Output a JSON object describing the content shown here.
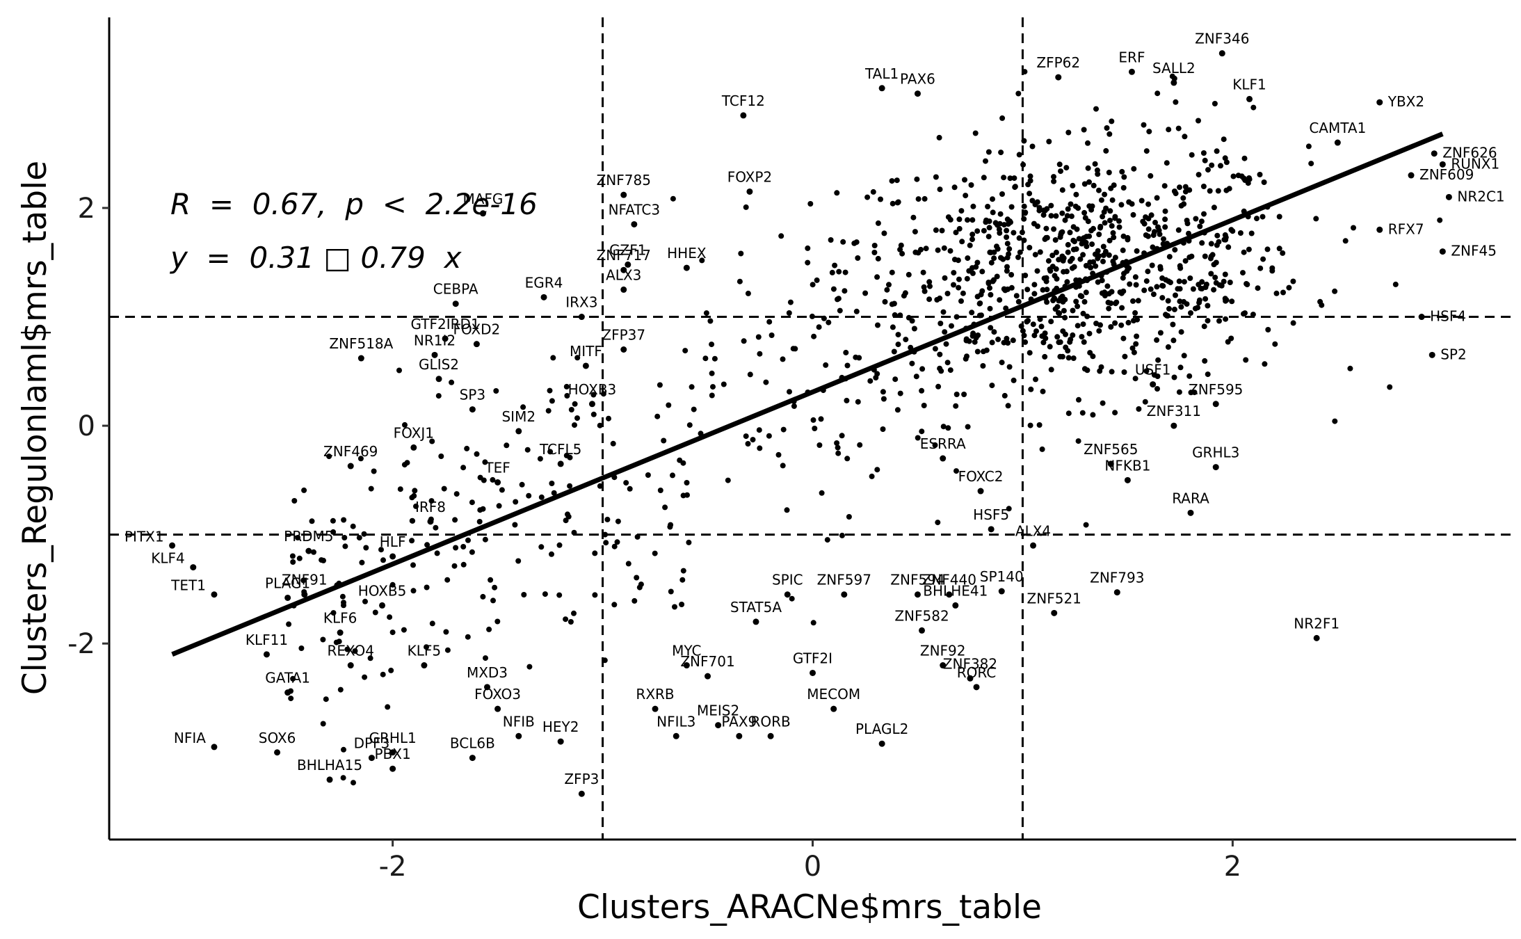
{
  "chart_data": {
    "type": "scatter",
    "xlabel": "Clusters_ARACNe$mrs_table",
    "ylabel": "Clusters_Regulonlaml$mrs_table",
    "xlim": [
      -3.35,
      3.35
    ],
    "ylim": [
      -3.8,
      3.75
    ],
    "x_ticks": [
      -2,
      0,
      2
    ],
    "y_ticks": [
      -2,
      0,
      2
    ],
    "x_tick_labels": [
      "-2",
      "0",
      "2"
    ],
    "y_tick_labels": [
      "-2",
      "0",
      "2"
    ],
    "grid": false,
    "reference_lines": {
      "vertical": [
        -1,
        1
      ],
      "horizontal": [
        -1,
        1
      ],
      "style": "dashed"
    },
    "regression_line": {
      "intercept": 0.31,
      "slope": 0.79,
      "x_range": [
        -3.05,
        3.0
      ]
    },
    "annotation": {
      "r_line": "R  =  0.67,  p  <  2.2e-16",
      "eq_line": "y  =  0.31 □ 0.79  x"
    },
    "labeled_points": [
      {
        "label": "ZNF346",
        "x": 1.95,
        "y": 3.42
      },
      {
        "label": "ERF",
        "x": 1.52,
        "y": 3.25
      },
      {
        "label": "ZFP62",
        "x": 1.17,
        "y": 3.2
      },
      {
        "label": "SALL2",
        "x": 1.72,
        "y": 3.15
      },
      {
        "label": "TAL1",
        "x": 0.33,
        "y": 3.1
      },
      {
        "label": "PAX6",
        "x": 0.5,
        "y": 3.05
      },
      {
        "label": "KLF1",
        "x": 2.08,
        "y": 3.0
      },
      {
        "label": "YBX2",
        "x": 2.7,
        "y": 2.97
      },
      {
        "label": "TCF12",
        "x": -0.33,
        "y": 2.85
      },
      {
        "label": "CAMTA1",
        "x": 2.5,
        "y": 2.6
      },
      {
        "label": "ZNF626",
        "x": 2.96,
        "y": 2.5
      },
      {
        "label": "RUNX1",
        "x": 3.0,
        "y": 2.4
      },
      {
        "label": "ZNF609",
        "x": 2.85,
        "y": 2.3
      },
      {
        "label": "NR2C1",
        "x": 3.03,
        "y": 2.1
      },
      {
        "label": "ZNF785",
        "x": -0.9,
        "y": 2.12
      },
      {
        "label": "FOXP2",
        "x": -0.3,
        "y": 2.15
      },
      {
        "label": "NFATC3",
        "x": -0.85,
        "y": 1.85
      },
      {
        "label": "MAFG",
        "x": -1.57,
        "y": 1.95
      },
      {
        "label": "RFX7",
        "x": 2.7,
        "y": 1.8
      },
      {
        "label": "ZNF45",
        "x": 3.0,
        "y": 1.6
      },
      {
        "label": "GZF1",
        "x": -0.88,
        "y": 1.48
      },
      {
        "label": "ZNF717",
        "x": -0.9,
        "y": 1.43
      },
      {
        "label": "HHEX",
        "x": -0.6,
        "y": 1.45
      },
      {
        "label": "CEBPA",
        "x": -1.7,
        "y": 1.12
      },
      {
        "label": "EGR4",
        "x": -1.28,
        "y": 1.18
      },
      {
        "label": "ALX3",
        "x": -0.9,
        "y": 1.25
      },
      {
        "label": "IRX3",
        "x": -1.1,
        "y": 1.0
      },
      {
        "label": "HSF4",
        "x": 2.9,
        "y": 1.0
      },
      {
        "label": "GTF2IRD1",
        "x": -1.75,
        "y": 0.8
      },
      {
        "label": "NR1I2",
        "x": -1.8,
        "y": 0.65
      },
      {
        "label": "ZFP37",
        "x": -0.9,
        "y": 0.7
      },
      {
        "label": "ZNF518A",
        "x": -2.15,
        "y": 0.62
      },
      {
        "label": "FOXD2",
        "x": -1.6,
        "y": 0.75
      },
      {
        "label": "GLIS2",
        "x": -1.78,
        "y": 0.43
      },
      {
        "label": "MITF",
        "x": -1.08,
        "y": 0.55
      },
      {
        "label": "SP2",
        "x": 2.95,
        "y": 0.65
      },
      {
        "label": "USF1",
        "x": 1.62,
        "y": 0.38
      },
      {
        "label": "SP3",
        "x": -1.62,
        "y": 0.15
      },
      {
        "label": "HOXB3",
        "x": -1.05,
        "y": 0.2
      },
      {
        "label": "ZNF595",
        "x": 1.92,
        "y": 0.2
      },
      {
        "label": "FOXJ1",
        "x": -1.9,
        "y": -0.2
      },
      {
        "label": "SIM2",
        "x": -1.4,
        "y": -0.05
      },
      {
        "label": "ZNF311",
        "x": 1.72,
        "y": 0.0
      },
      {
        "label": "ZNF565",
        "x": 1.42,
        "y": -0.35
      },
      {
        "label": "ESRRA",
        "x": 0.62,
        "y": -0.3
      },
      {
        "label": "TCFL5",
        "x": -1.2,
        "y": -0.35
      },
      {
        "label": "ZNF469",
        "x": -2.2,
        "y": -0.37
      },
      {
        "label": "GRHL3",
        "x": 1.92,
        "y": -0.38
      },
      {
        "label": "TEF",
        "x": -1.5,
        "y": -0.52
      },
      {
        "label": "FOXC2",
        "x": 0.8,
        "y": -0.6
      },
      {
        "label": "NFKB1",
        "x": 1.5,
        "y": -0.5
      },
      {
        "label": "IRF8",
        "x": -1.82,
        "y": -0.88
      },
      {
        "label": "HSF5",
        "x": 0.85,
        "y": -0.95
      },
      {
        "label": "RARA",
        "x": 1.8,
        "y": -0.8
      },
      {
        "label": "PITX1",
        "x": -3.05,
        "y": -1.1
      },
      {
        "label": "PRDM5",
        "x": -2.4,
        "y": -1.15
      },
      {
        "label": "HLF",
        "x": -2.0,
        "y": -1.2
      },
      {
        "label": "ALX4",
        "x": 1.05,
        "y": -1.1
      },
      {
        "label": "KLF4",
        "x": -2.95,
        "y": -1.3
      },
      {
        "label": "ZNF594",
        "x": 0.5,
        "y": -1.55
      },
      {
        "label": "ZNF440",
        "x": 0.65,
        "y": -1.55
      },
      {
        "label": "SP140",
        "x": 0.9,
        "y": -1.52
      },
      {
        "label": "ZNF91",
        "x": -2.42,
        "y": -1.55
      },
      {
        "label": "SPIC",
        "x": -0.12,
        "y": -1.55
      },
      {
        "label": "ZNF597",
        "x": 0.15,
        "y": -1.55
      },
      {
        "label": "ZNF793",
        "x": 1.45,
        "y": -1.53
      },
      {
        "label": "TET1",
        "x": -2.85,
        "y": -1.55
      },
      {
        "label": "HOXB5",
        "x": -2.05,
        "y": -1.65
      },
      {
        "label": "PLAG1",
        "x": -2.5,
        "y": -1.58
      },
      {
        "label": "ZNF582",
        "x": 0.52,
        "y": -1.88
      },
      {
        "label": "BHLHE41",
        "x": 0.68,
        "y": -1.65
      },
      {
        "label": "STAT5A",
        "x": -0.27,
        "y": -1.8
      },
      {
        "label": "ZNF521",
        "x": 1.15,
        "y": -1.72
      },
      {
        "label": "NR2F1",
        "x": 2.4,
        "y": -1.95
      },
      {
        "label": "KLF6",
        "x": -2.25,
        "y": -1.9
      },
      {
        "label": "KLF5",
        "x": -1.85,
        "y": -2.2
      },
      {
        "label": "ZNF92",
        "x": 0.62,
        "y": -2.2
      },
      {
        "label": "GTF2I",
        "x": 0.0,
        "y": -2.27
      },
      {
        "label": "ZNF701",
        "x": -0.5,
        "y": -2.3
      },
      {
        "label": "ZNF382",
        "x": 0.75,
        "y": -2.32
      },
      {
        "label": "KLF11",
        "x": -2.6,
        "y": -2.1
      },
      {
        "label": "MYC",
        "x": -0.6,
        "y": -2.2
      },
      {
        "label": "REXO4",
        "x": -2.2,
        "y": -2.2
      },
      {
        "label": "MXD3",
        "x": -1.55,
        "y": -2.4
      },
      {
        "label": "FOXO3",
        "x": -1.5,
        "y": -2.6
      },
      {
        "label": "MECOM",
        "x": 0.1,
        "y": -2.6
      },
      {
        "label": "GATA1",
        "x": -2.5,
        "y": -2.45
      },
      {
        "label": "RORC",
        "x": 0.78,
        "y": -2.4
      },
      {
        "label": "RXRB",
        "x": -0.75,
        "y": -2.6
      },
      {
        "label": "MEIS2",
        "x": -0.45,
        "y": -2.75
      },
      {
        "label": "NFIB",
        "x": -1.4,
        "y": -2.85
      },
      {
        "label": "HEY2",
        "x": -1.2,
        "y": -2.9
      },
      {
        "label": "PLAGL2",
        "x": 0.33,
        "y": -2.92
      },
      {
        "label": "GRHL1",
        "x": -2.0,
        "y": -3.0
      },
      {
        "label": "NFIA",
        "x": -2.85,
        "y": -2.95
      },
      {
        "label": "SOX6",
        "x": -2.55,
        "y": -3.0
      },
      {
        "label": "NFIL3",
        "x": -0.65,
        "y": -2.85
      },
      {
        "label": "PAX9",
        "x": -0.35,
        "y": -2.85
      },
      {
        "label": "RORB",
        "x": -0.2,
        "y": -2.85
      },
      {
        "label": "DPF3",
        "x": -2.1,
        "y": -3.05
      },
      {
        "label": "BCL6B",
        "x": -1.62,
        "y": -3.05
      },
      {
        "label": "PBX1",
        "x": -2.0,
        "y": -3.15
      },
      {
        "label": "BHLHA15",
        "x": -2.3,
        "y": -3.25
      },
      {
        "label": "ZFP3",
        "x": -1.1,
        "y": -3.38
      }
    ]
  }
}
